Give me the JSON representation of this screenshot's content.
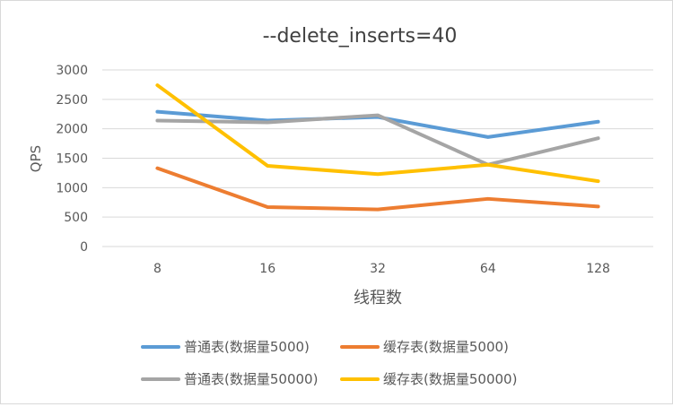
{
  "chart_data": {
    "type": "line",
    "title": "--delete_inserts=40",
    "xlabel": "线程数",
    "ylabel": "QPS",
    "categories": [
      "8",
      "16",
      "32",
      "64",
      "128"
    ],
    "ylim": [
      0,
      3000
    ],
    "yticks": [
      0,
      500,
      1000,
      1500,
      2000,
      2500,
      3000
    ],
    "grid": true,
    "legend_position": "bottom",
    "series": [
      {
        "name": "普通表(数据量5000)",
        "color": "#5b9bd5",
        "values": [
          2290,
          2140,
          2200,
          1860,
          2120
        ]
      },
      {
        "name": "缓存表(数据量5000)",
        "color": "#ed7d31",
        "values": [
          1330,
          670,
          630,
          810,
          680
        ]
      },
      {
        "name": "普通表(数据量50000)",
        "color": "#a5a5a5",
        "values": [
          2140,
          2110,
          2230,
          1390,
          1840
        ]
      },
      {
        "name": "缓存表(数据量50000)",
        "color": "#ffc000",
        "values": [
          2740,
          1370,
          1230,
          1390,
          1110
        ]
      }
    ]
  }
}
